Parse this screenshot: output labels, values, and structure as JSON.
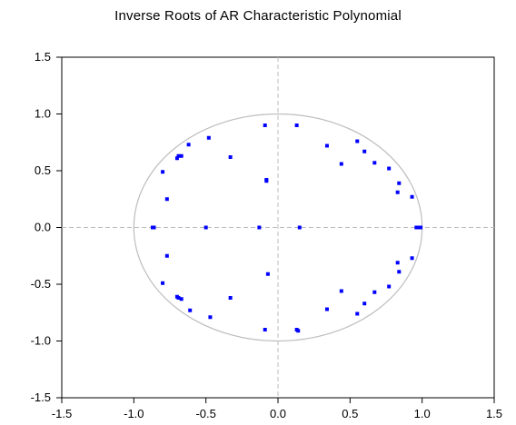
{
  "chart_data": {
    "type": "scatter",
    "title": "Inverse Roots of AR Characteristic Polynomial",
    "xlabel": "",
    "ylabel": "",
    "xlim": [
      -1.5,
      1.5
    ],
    "ylim": [
      -1.5,
      1.5
    ],
    "xticks": [
      "-1.5",
      "-1.0",
      "-0.5",
      "0.0",
      "0.5",
      "1.0",
      "1.5"
    ],
    "yticks": [
      "1.5",
      "1.0",
      "0.5",
      "0.0",
      "-0.5",
      "-1.0",
      "-1.5"
    ],
    "unit_circle": true,
    "reference_lines": {
      "x": 0,
      "y": 0
    },
    "grid": false,
    "legend": "none",
    "colors": {
      "points": "#0000ff",
      "circle": "#bdbdbd",
      "axes": "#000000",
      "reference": "#bdbdbd"
    },
    "points": [
      {
        "x": -0.86,
        "y": 0.0
      },
      {
        "x": -0.87,
        "y": 0.0
      },
      {
        "x": -0.5,
        "y": 0.0
      },
      {
        "x": -0.13,
        "y": 0.0
      },
      {
        "x": 0.15,
        "y": 0.0
      },
      {
        "x": 0.96,
        "y": 0.0
      },
      {
        "x": 0.98,
        "y": 0.0
      },
      {
        "x": 0.99,
        "y": 0.0
      },
      {
        "x": -0.09,
        "y": 0.9
      },
      {
        "x": -0.09,
        "y": -0.9
      },
      {
        "x": 0.13,
        "y": 0.9
      },
      {
        "x": 0.13,
        "y": -0.9
      },
      {
        "x": 0.14,
        "y": -0.91
      },
      {
        "x": -0.08,
        "y": 0.42
      },
      {
        "x": -0.08,
        "y": 0.41
      },
      {
        "x": -0.07,
        "y": -0.41
      },
      {
        "x": -0.33,
        "y": 0.62
      },
      {
        "x": -0.33,
        "y": -0.62
      },
      {
        "x": -0.48,
        "y": 0.79
      },
      {
        "x": -0.47,
        "y": -0.79
      },
      {
        "x": -0.62,
        "y": 0.73
      },
      {
        "x": -0.61,
        "y": -0.73
      },
      {
        "x": -0.69,
        "y": 0.63
      },
      {
        "x": -0.67,
        "y": 0.63
      },
      {
        "x": -0.7,
        "y": 0.61
      },
      {
        "x": -0.69,
        "y": -0.62
      },
      {
        "x": -0.67,
        "y": -0.63
      },
      {
        "x": -0.7,
        "y": -0.61
      },
      {
        "x": -0.8,
        "y": 0.49
      },
      {
        "x": -0.8,
        "y": -0.49
      },
      {
        "x": -0.77,
        "y": 0.25
      },
      {
        "x": -0.77,
        "y": -0.25
      },
      {
        "x": 0.34,
        "y": 0.72
      },
      {
        "x": 0.34,
        "y": -0.72
      },
      {
        "x": 0.44,
        "y": 0.56
      },
      {
        "x": 0.44,
        "y": -0.56
      },
      {
        "x": 0.55,
        "y": 0.76
      },
      {
        "x": 0.55,
        "y": -0.76
      },
      {
        "x": 0.6,
        "y": 0.67
      },
      {
        "x": 0.6,
        "y": -0.67
      },
      {
        "x": 0.67,
        "y": 0.57
      },
      {
        "x": 0.67,
        "y": -0.57
      },
      {
        "x": 0.77,
        "y": 0.52
      },
      {
        "x": 0.77,
        "y": -0.52
      },
      {
        "x": 0.84,
        "y": 0.39
      },
      {
        "x": 0.84,
        "y": -0.39
      },
      {
        "x": 0.83,
        "y": 0.31
      },
      {
        "x": 0.83,
        "y": -0.31
      },
      {
        "x": 0.93,
        "y": 0.27
      },
      {
        "x": 0.93,
        "y": -0.27
      }
    ]
  }
}
